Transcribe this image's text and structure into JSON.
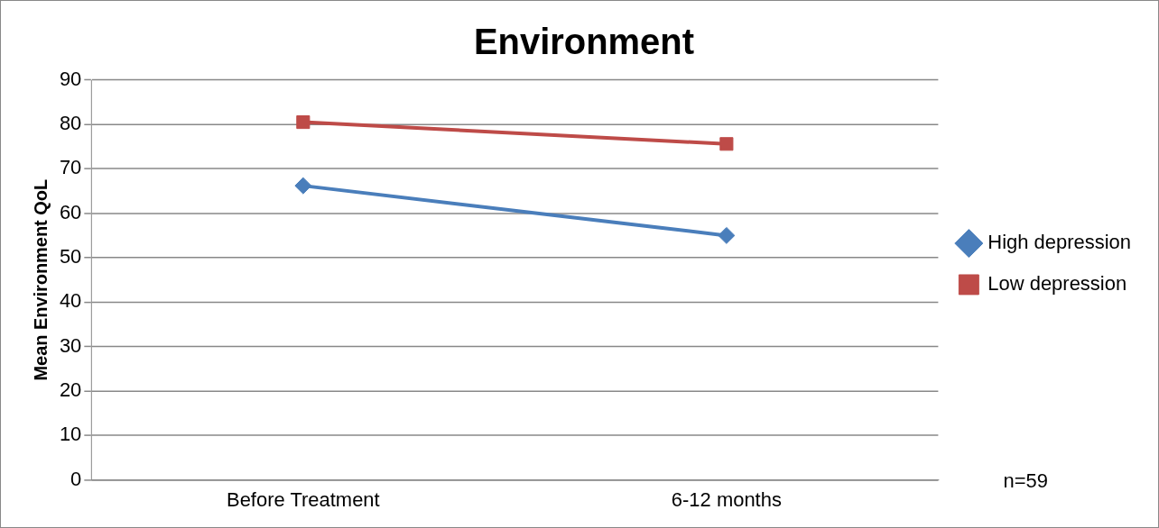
{
  "chart_data": {
    "type": "line",
    "title": "Environment",
    "ylabel": "Mean Environment QoL",
    "categories": [
      "Before Treatment",
      "6-12 months"
    ],
    "series": [
      {
        "name": "High depression",
        "color": "#4a7ebb",
        "marker": "diamond",
        "values": [
          66.2,
          55
        ]
      },
      {
        "name": "Low depression",
        "color": "#be4b48",
        "marker": "square",
        "values": [
          80.5,
          75.6
        ]
      }
    ],
    "ylim": [
      0,
      90
    ],
    "yticks": [
      0,
      10,
      20,
      30,
      40,
      50,
      60,
      70,
      80,
      90
    ],
    "grid": "y",
    "legend": "right",
    "annotations": [
      "n=59"
    ]
  }
}
